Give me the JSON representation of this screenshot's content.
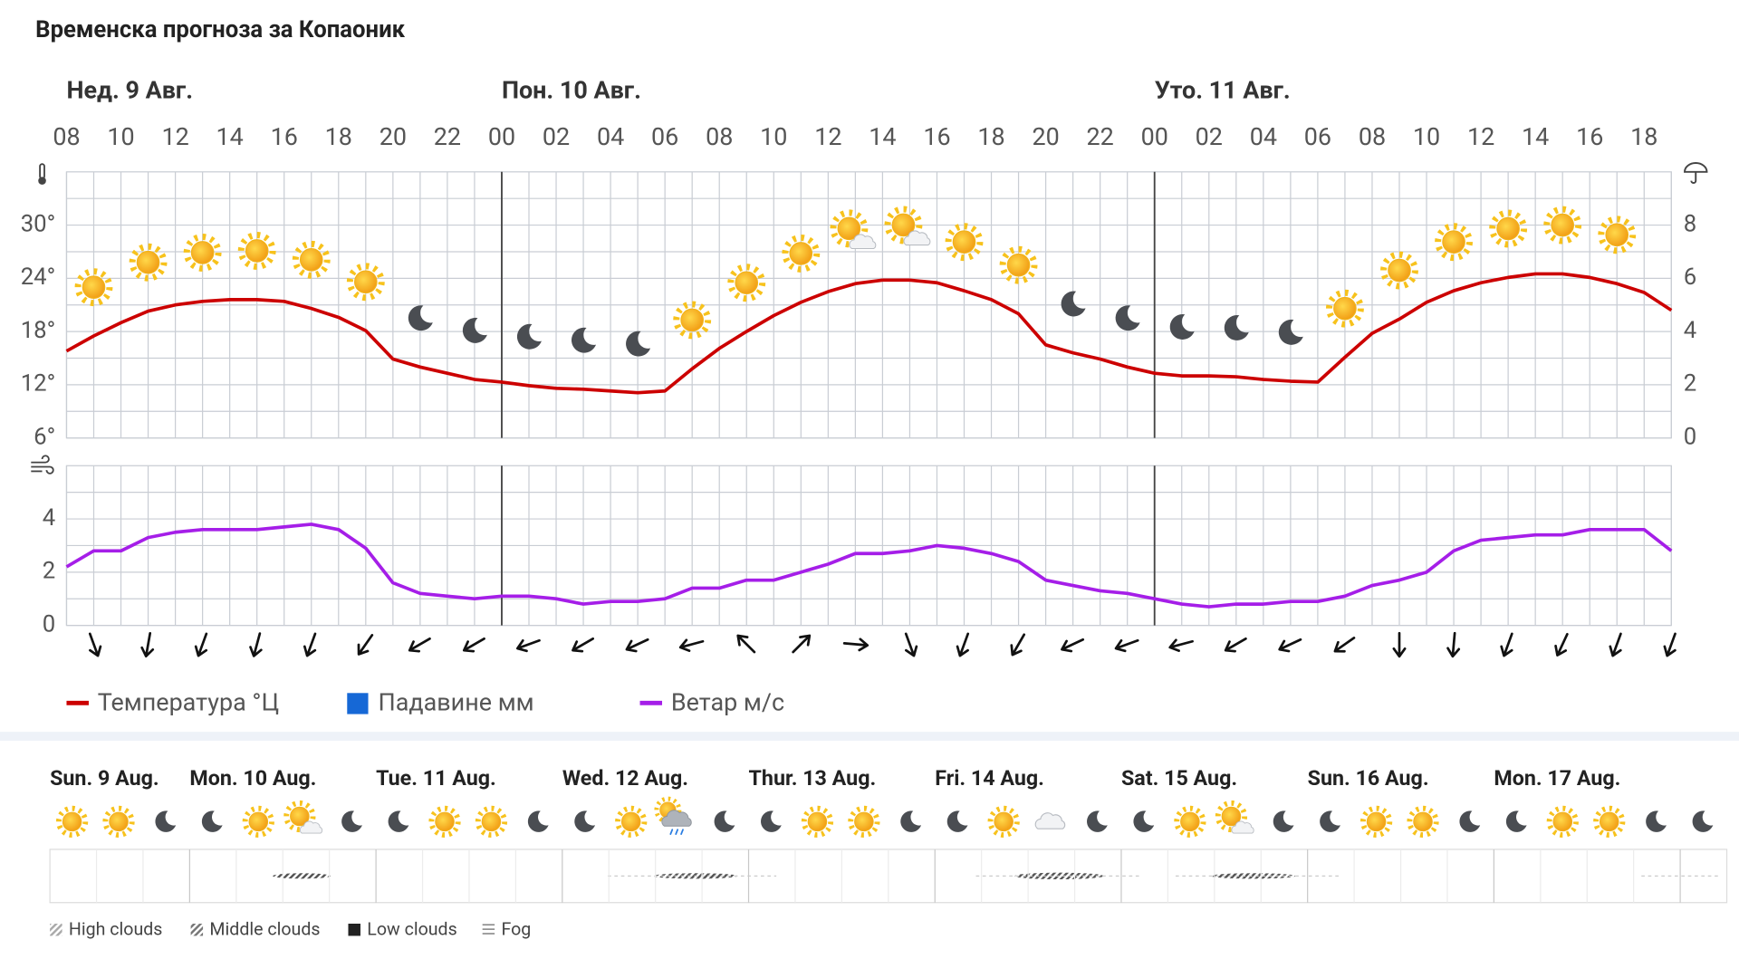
{
  "title": "Временска прогноза за Копаоник",
  "chart_data": [
    {
      "type": "line",
      "day_labels": [
        "Нед. 9 Авг.",
        "Пон. 10 Авг.",
        "Уто. 11 Авг."
      ],
      "categories": [
        "08",
        null,
        "10",
        null,
        "12",
        null,
        "14",
        null,
        "16",
        null,
        "18",
        null,
        "20",
        null,
        "22",
        null,
        "00",
        null,
        "02",
        null,
        "04",
        null,
        "06",
        null,
        "08",
        null,
        "10",
        null,
        "12",
        null,
        "14",
        null,
        "16",
        null,
        "18",
        null,
        "20",
        null,
        "22",
        null,
        "00",
        null,
        "02",
        null,
        "04",
        null,
        "06",
        null,
        "08",
        null,
        "10",
        null,
        "12",
        null,
        "14",
        null,
        "16",
        null,
        "18",
        null
      ],
      "series": [
        {
          "name": "Температура °Ц",
          "color": "#cc0000",
          "values": [
            15.8,
            17.5,
            19,
            20.3,
            21,
            21.4,
            21.6,
            21.6,
            21.4,
            20.6,
            19.6,
            18.1,
            14.9,
            14,
            13.3,
            12.6,
            12.3,
            11.9,
            11.6,
            11.5,
            11.3,
            11.1,
            11.3,
            13.8,
            16.1,
            18,
            19.8,
            21.3,
            22.5,
            23.4,
            23.8,
            23.8,
            23.5,
            22.6,
            21.6,
            20,
            16.5,
            15.6,
            14.9,
            14,
            13.3,
            13,
            13,
            12.9,
            12.6,
            12.4,
            12.3,
            15.1,
            17.8,
            19.4,
            21.3,
            22.6,
            23.5,
            24.1,
            24.5,
            24.5,
            24.1,
            23.4,
            22.4,
            20.4
          ]
        },
        {
          "name": "Падавине мм",
          "color": "#1668d6",
          "axis": "y2",
          "values": [
            0,
            0,
            0,
            0,
            0,
            0,
            0,
            0,
            0,
            0,
            0,
            0,
            0,
            0,
            0,
            0,
            0,
            0,
            0,
            0,
            0,
            0,
            0,
            0,
            0,
            0,
            0,
            0,
            0,
            0,
            0,
            0,
            0,
            0,
            0,
            0,
            0,
            0,
            0,
            0,
            0,
            0,
            0,
            0,
            0,
            0,
            0,
            0,
            0,
            0,
            0,
            0,
            0,
            0,
            0,
            0,
            0,
            0,
            0,
            0
          ]
        }
      ],
      "ylim": [
        6,
        36
      ],
      "yticks": [
        {
          "value": 6,
          "label": "6°"
        },
        {
          "value": 12,
          "label": "12°"
        },
        {
          "value": 18,
          "label": "18°"
        },
        {
          "value": 24,
          "label": "24°"
        },
        {
          "value": 30,
          "label": "30°"
        }
      ],
      "y_minor_ticks": [
        9,
        15,
        21,
        27,
        33
      ],
      "y2lim": [
        0,
        10
      ],
      "y2ticks": [
        0,
        2,
        4,
        6,
        8
      ],
      "grid": true
    },
    {
      "type": "line",
      "series": [
        {
          "name": "Ветар м/с",
          "color": "#a51ee8",
          "values": [
            2.2,
            2.8,
            2.8,
            3.3,
            3.5,
            3.6,
            3.6,
            3.6,
            3.7,
            3.8,
            3.6,
            2.9,
            1.6,
            1.2,
            1.1,
            1,
            1.1,
            1.1,
            1,
            0.8,
            0.9,
            0.9,
            1,
            1.4,
            1.4,
            1.7,
            1.7,
            2,
            2.3,
            2.7,
            2.7,
            2.8,
            3,
            2.9,
            2.7,
            2.4,
            1.7,
            1.5,
            1.3,
            1.2,
            1,
            0.8,
            0.7,
            0.8,
            0.8,
            0.9,
            0.9,
            1.1,
            1.5,
            1.7,
            2,
            2.8,
            3.2,
            3.3,
            3.4,
            3.4,
            3.6,
            3.6,
            3.6,
            2.8
          ]
        }
      ],
      "directions": [
        160,
        190,
        200,
        195,
        200,
        215,
        240,
        240,
        250,
        240,
        245,
        255,
        315,
        45,
        95,
        160,
        200,
        210,
        245,
        250,
        255,
        240,
        245,
        235,
        180,
        185,
        200,
        205,
        200,
        200
      ],
      "ylim": [
        0,
        6
      ],
      "yticks": [
        0,
        2,
        4
      ],
      "y_minor_ticks": [
        1,
        3,
        5
      ],
      "grid": true
    }
  ],
  "forecast": {
    "days": [
      "Sun. 9 Aug.",
      "Mon. 10 Aug.",
      "Tue. 11 Aug.",
      "Wed. 12 Aug.",
      "Thur. 13 Aug.",
      "Fri. 14 Aug.",
      "Sat. 15 Aug.",
      "Sun. 16 Aug.",
      "Mon. 17 Aug."
    ],
    "cloud_legend": [
      "High clouds",
      "Middle clouds",
      "Low clouds",
      "Fog"
    ]
  }
}
